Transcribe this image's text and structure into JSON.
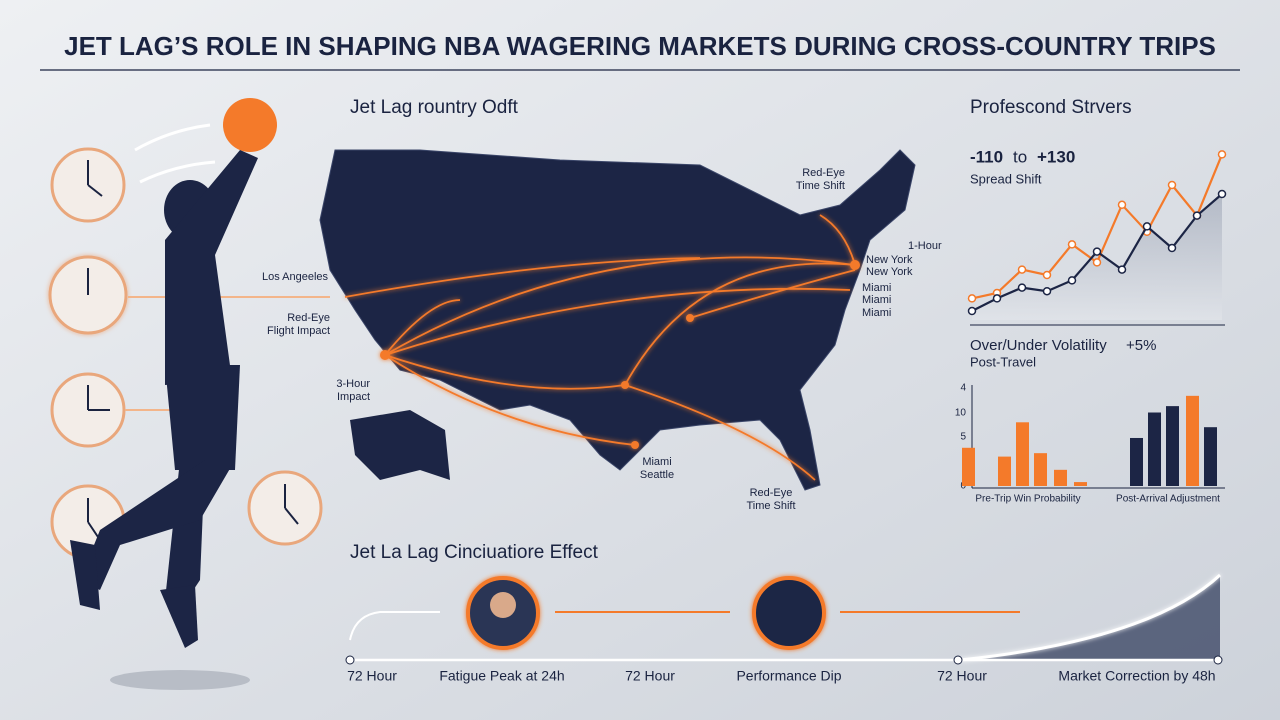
{
  "header": {
    "title": "JET LAG’S ROLE IN SHAPING NBA WAGERING MARKETS DURING CROSS-COUNTRY TRIPS"
  },
  "map": {
    "title": "Jet Lag rountry Odft",
    "labels": [
      "Los Angeeles",
      "Red-Eye",
      "Flight Impact",
      "3-Hour",
      "Impact",
      "Red-Eye",
      "Time Shift",
      "1-Hour",
      "New York",
      "New York",
      "Miami",
      "Miami",
      "Miami",
      "Miami",
      "Seattle",
      "Red-Eye",
      "Time Shift"
    ]
  },
  "right_panel": {
    "title": "Profescond Strvers",
    "spread": "-110",
    "spread_to": "to",
    "spread_high": "+130",
    "spread_label": "Spread Shift",
    "volatility_title": "Over/Under Volatility",
    "volatility_value": "+5%",
    "volatility_sub": "Post-Travel",
    "bar_axis_labels": [
      "4",
      "10",
      "5",
      "0"
    ],
    "bar_group_labels": [
      "Pre-Trip Win Probability",
      "Post-Arrival Adjustment"
    ]
  },
  "chart_data": [
    {
      "type": "line",
      "categories": [
        null,
        null,
        null,
        null,
        null,
        null,
        null,
        null,
        null,
        null,
        null
      ],
      "ylim": [
        0,
        100
      ],
      "series": [
        {
          "color": "#f47a2a",
          "values": [
            12,
            15,
            28,
            25,
            42,
            32,
            64,
            49,
            75,
            58,
            92
          ]
        },
        {
          "color": "#1c2545",
          "values": [
            5,
            12,
            18,
            16,
            22,
            38,
            28,
            52,
            40,
            58,
            70
          ]
        }
      ]
    },
    {
      "type": "bar",
      "categories": [
        null,
        null,
        null,
        null,
        null,
        null,
        null,
        null,
        null,
        null,
        null
      ],
      "ylim": [
        0,
        20
      ],
      "values": [
        7.8,
        6,
        13,
        6.7,
        3.3,
        0.8,
        9.8,
        15,
        16.3,
        18.4,
        12
      ],
      "colors": [
        "#f47a2a",
        "#f47a2a",
        "#f47a2a",
        "#f47a2a",
        "#f47a2a",
        "#f47a2a",
        "#1c2545",
        "#1c2545",
        "#1c2545",
        "#f47a2a",
        "#1c2545"
      ]
    }
  ],
  "timeline": {
    "title": "Jet La Lag Cinciuatiore Effect",
    "labels": [
      "72 Hour",
      "Fatigue Peak at 24h",
      "72 Hour",
      "Performance Dip",
      "72 Hour",
      "Market Correction by 48h"
    ]
  }
}
